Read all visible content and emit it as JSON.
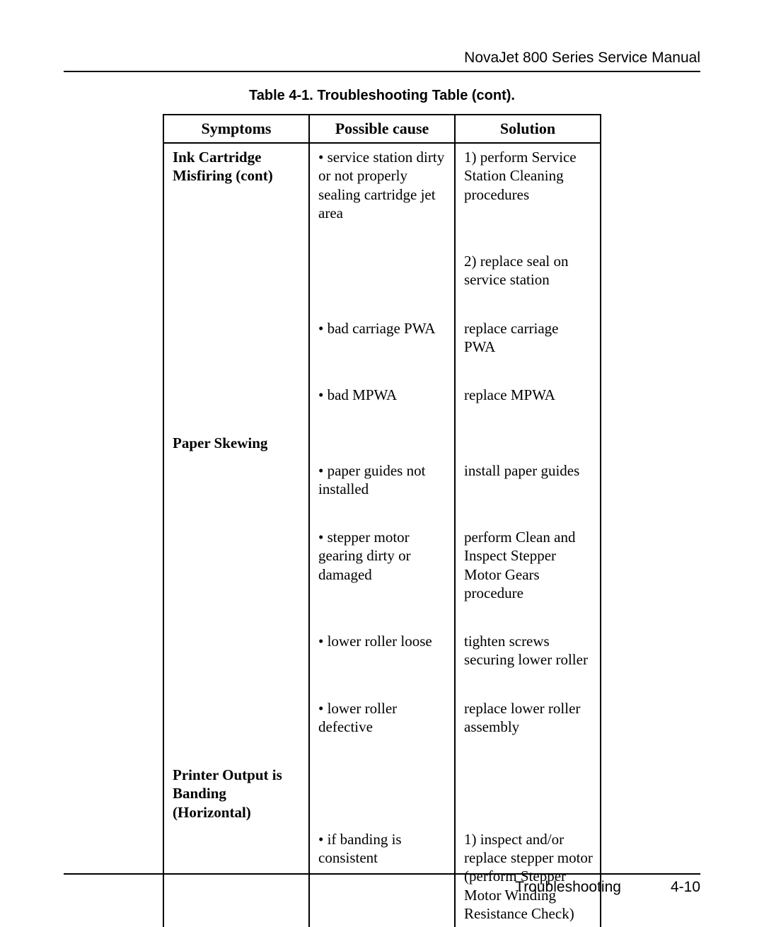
{
  "header": {
    "manual_title": "NovaJet 800 Series Service Manual"
  },
  "table": {
    "caption": "Table 4-1.  Troubleshooting Table (cont).",
    "columns": {
      "symptoms": "Symptoms",
      "cause": "Possible cause",
      "solution": "Solution"
    },
    "rows": {
      "r1": {
        "symptom": "Ink Cartridge Misfiring (cont)",
        "cause": "• service station dirty or not properly sealing cartridge jet area",
        "solution": "1) perform Service Station Cleaning procedures"
      },
      "r2": {
        "solution": "2) replace seal on service station"
      },
      "r3": {
        "cause": "• bad carriage PWA",
        "solution": "replace carriage PWA"
      },
      "r4": {
        "cause": "• bad MPWA",
        "solution": "replace MPWA"
      },
      "r5": {
        "symptom": "Paper Skewing"
      },
      "r6": {
        "cause": "• paper guides not installed",
        "solution": "install paper guides"
      },
      "r7": {
        "cause": "• stepper motor gearing dirty or damaged",
        "solution": "perform Clean and Inspect Stepper Motor Gears procedure"
      },
      "r8": {
        "cause": "• lower roller loose",
        "solution": "tighten screws securing lower roller"
      },
      "r9": {
        "cause": "• lower roller defective",
        "solution": "replace lower roller assembly"
      },
      "r10": {
        "symptom": "Printer Output is Banding (Horizontal)"
      },
      "r11": {
        "cause": "• if banding is consistent",
        "solution": "1) inspect and/or replace stepper motor (perform Stepper Motor Winding Resistance Check)"
      }
    }
  },
  "footer": {
    "section": "Troubleshooting",
    "page_number": "4-10"
  }
}
